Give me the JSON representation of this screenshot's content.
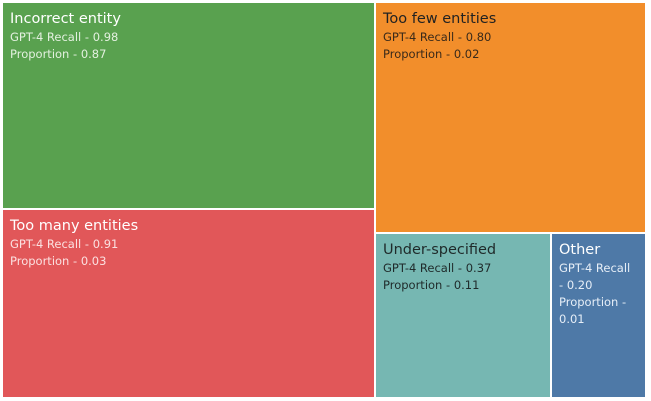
{
  "chart_data": {
    "type": "treemap",
    "recall_label": "GPT-4 Recall",
    "proportion_label": "Proportion",
    "separator": " - ",
    "items": [
      {
        "name": "Incorrect entity",
        "recall": "0.98",
        "proportion": "0.87",
        "color": "#59a14f",
        "text_color": "#ffffff",
        "meta_color": "#e3f0df"
      },
      {
        "name": "Too few entities",
        "recall": "0.80",
        "proportion": "0.02",
        "color": "#f28e2b",
        "text_color": "#222222",
        "meta_color": "#3a2a1a"
      },
      {
        "name": "Too many entities",
        "recall": "0.91",
        "proportion": "0.03",
        "color": "#e15759",
        "text_color": "#ffffff",
        "meta_color": "#fbe0e0"
      },
      {
        "name": "Under-specified",
        "recall": "0.37",
        "proportion": "0.11",
        "color": "#76b7b2",
        "text_color": "#1f2a2a",
        "meta_color": "#1f2a2a"
      },
      {
        "name": "Other",
        "recall": "0.20",
        "proportion": "0.01",
        "color": "#4e79a7",
        "text_color": "#ffffff",
        "meta_color": "#e6eef7"
      }
    ]
  }
}
